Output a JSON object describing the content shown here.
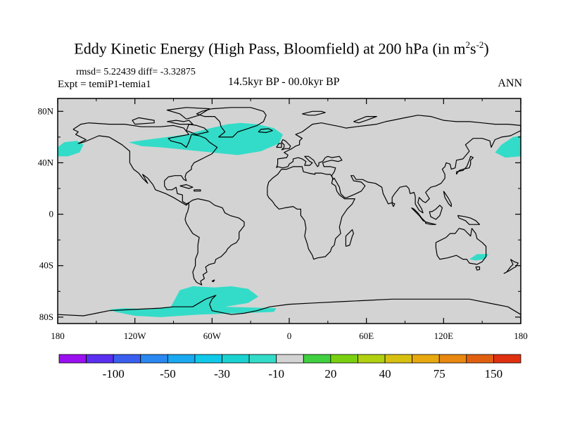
{
  "title": {
    "main": "Eddy Kinetic Energy (High Pass, Bloomfield) at 200 hPa (in m",
    "sup1": "2",
    "mid": "s",
    "sup2": "-2",
    "close": ")"
  },
  "stats": "rmsd= 5.22439 diff= -3.32875",
  "expt": "Expt = temiP1-temia1",
  "subtitle": "14.5kyr BP - 00.0kyr BP",
  "season": "ANN",
  "map": {
    "land_color": "#d3d3d3",
    "coast_color": "#000000",
    "lat_labels": [
      "80N",
      "40N",
      "0",
      "40S",
      "80S"
    ],
    "lat_values": [
      80,
      40,
      0,
      -40,
      -80
    ],
    "lon_labels": [
      "180",
      "120W",
      "60W",
      "0",
      "60E",
      "120E",
      "180"
    ],
    "lon_values": [
      -180,
      -120,
      -60,
      0,
      60,
      120,
      180
    ],
    "anomaly_color": "#33dcc8",
    "regions": [
      {
        "name": "north-pacific-west",
        "polygon": [
          [
            -180,
            52
          ],
          [
            -175,
            56
          ],
          [
            -165,
            57
          ],
          [
            -160,
            54
          ],
          [
            -163,
            48
          ],
          [
            -172,
            45
          ],
          [
            -180,
            45
          ]
        ]
      },
      {
        "name": "north-pacific-east",
        "polygon": [
          [
            180,
            61
          ],
          [
            174,
            60
          ],
          [
            165,
            54
          ],
          [
            160,
            48
          ],
          [
            168,
            44
          ],
          [
            180,
            45
          ]
        ]
      },
      {
        "name": "north-atlantic",
        "polygon": [
          [
            -125,
            56
          ],
          [
            -110,
            58
          ],
          [
            -95,
            60
          ],
          [
            -80,
            62
          ],
          [
            -65,
            66
          ],
          [
            -48,
            70
          ],
          [
            -38,
            71
          ],
          [
            -25,
            70
          ],
          [
            -12,
            67
          ],
          [
            -5,
            62
          ],
          [
            -8,
            55
          ],
          [
            -22,
            49
          ],
          [
            -40,
            46
          ],
          [
            -60,
            48
          ],
          [
            -80,
            50
          ],
          [
            -100,
            52
          ],
          [
            -115,
            53
          ]
        ]
      },
      {
        "name": "australia-east",
        "polygon": [
          [
            140,
            -35
          ],
          [
            146,
            -31
          ],
          [
            155,
            -31
          ],
          [
            152,
            -35
          ],
          [
            145,
            -36
          ]
        ]
      },
      {
        "name": "southern-ocean",
        "polygon": [
          [
            -140,
            -74
          ],
          [
            -128,
            -73
          ],
          [
            -108,
            -74
          ],
          [
            -92,
            -72
          ],
          [
            -85,
            -59
          ],
          [
            -75,
            -56
          ],
          [
            -58,
            -57
          ],
          [
            -45,
            -56
          ],
          [
            -32,
            -58
          ],
          [
            -24,
            -64
          ],
          [
            -32,
            -69
          ],
          [
            -50,
            -72
          ],
          [
            -10,
            -73
          ],
          [
            -12,
            -76
          ],
          [
            -70,
            -78
          ],
          [
            -100,
            -80
          ],
          [
            -120,
            -79
          ],
          [
            -135,
            -76
          ]
        ]
      }
    ]
  },
  "colorbar": {
    "colors": [
      "#9a10f0",
      "#5a2ff0",
      "#3a5ff0",
      "#2a88f0",
      "#1aa8f0",
      "#10c8e8",
      "#1ad2d0",
      "#33dcc8",
      "#d3d3d3",
      "#40d040",
      "#7ad010",
      "#b0d010",
      "#d8c010",
      "#e8a810",
      "#e88810",
      "#e06010",
      "#e03010"
    ],
    "labels": [
      "-100",
      "-50",
      "-30",
      "-10",
      "20",
      "40",
      "75",
      "150"
    ],
    "label_edges": [
      2,
      4,
      6,
      8,
      10,
      12,
      14,
      16
    ]
  }
}
